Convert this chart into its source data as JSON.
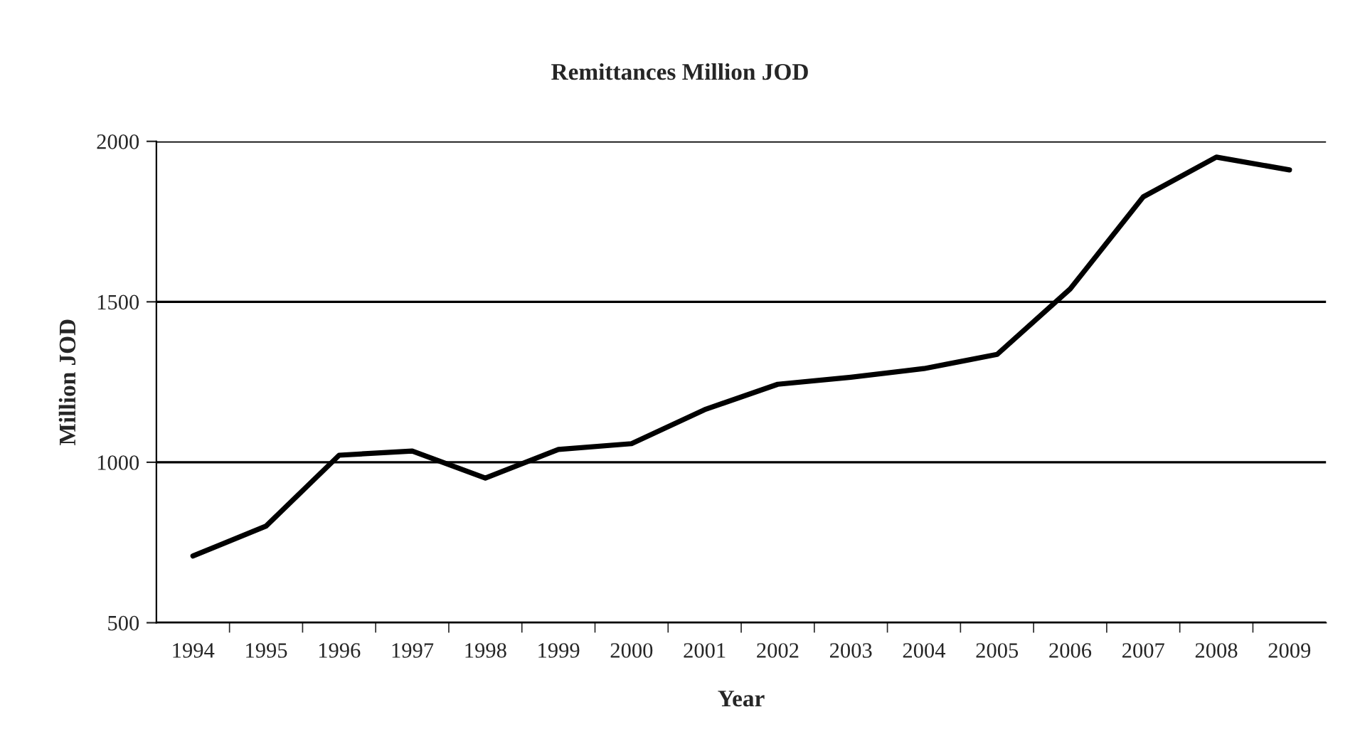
{
  "chart_data": {
    "type": "line",
    "title": "Remittances Million JOD",
    "xlabel": "Year",
    "ylabel": "Million JOD",
    "categories": [
      "1994",
      "1995",
      "1996",
      "1997",
      "1998",
      "1999",
      "2000",
      "2001",
      "2002",
      "2003",
      "2004",
      "2005",
      "2006",
      "2007",
      "2008",
      "2009"
    ],
    "series": [
      {
        "color": "#000000",
        "values": [
          708,
          801,
          1022,
          1035,
          951,
          1040,
          1058,
          1164,
          1243,
          1265,
          1292,
          1336,
          1540,
          1827,
          1951,
          1911
        ]
      }
    ],
    "ylim": [
      500,
      2000
    ],
    "yticks": [
      500,
      1000,
      1500,
      2000
    ],
    "grid": "y",
    "marker": "none",
    "line_style": "solid",
    "legend": false
  }
}
